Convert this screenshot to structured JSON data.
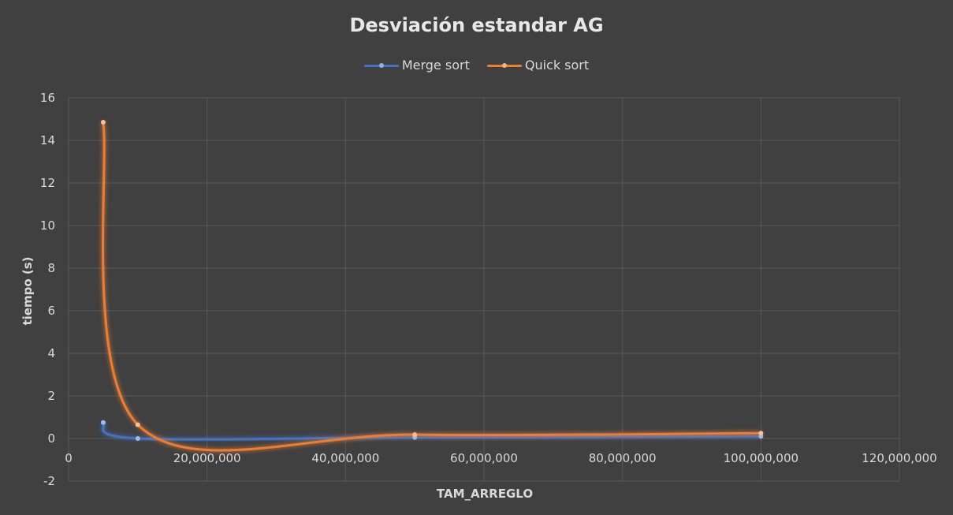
{
  "chart_data": {
    "type": "scatter",
    "title": "Desviación estandar AG",
    "xlabel": "TAM_ARREGLO",
    "ylabel": "tiempo (s)",
    "xlim": [
      0,
      120000000
    ],
    "ylim": [
      -2,
      16
    ],
    "x_ticks": [
      0,
      20000000,
      40000000,
      60000000,
      80000000,
      100000000,
      120000000
    ],
    "x_tick_labels": [
      "0",
      "20,000,000",
      "40,000,000",
      "60,000,000",
      "80,000,000",
      "100,000,000",
      "120,000,000"
    ],
    "y_ticks": [
      -2,
      0,
      2,
      4,
      6,
      8,
      10,
      12,
      14,
      16
    ],
    "y_tick_labels": [
      "-2",
      "0",
      "2",
      "4",
      "6",
      "8",
      "10",
      "12",
      "14",
      "16"
    ],
    "grid": true,
    "legend": "top-center",
    "smooth": true,
    "series": [
      {
        "name": "Merge sort",
        "color": "#4472c4",
        "x": [
          5000000,
          10000000,
          50000000,
          100000000
        ],
        "y": [
          0.75,
          0.0,
          0.05,
          0.1
        ]
      },
      {
        "name": "Quick sort",
        "color": "#ed7d31",
        "x": [
          5000000,
          10000000,
          50000000,
          100000000
        ],
        "y": [
          14.85,
          0.65,
          0.18,
          0.25
        ]
      }
    ]
  }
}
